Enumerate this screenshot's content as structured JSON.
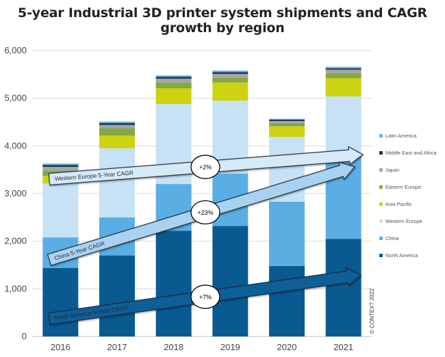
{
  "chart_data": {
    "type": "bar",
    "stacked": true,
    "title": "5-year Industrial 3D printer system shipments and CAGR growth by region",
    "categories": [
      "2016",
      "2017",
      "2018",
      "2019",
      "2020",
      "2021"
    ],
    "ylim": [
      0,
      6000
    ],
    "yticks": [
      "0",
      "1,000",
      "2,000",
      "3,000",
      "4,000",
      "5,000",
      "6,000"
    ],
    "ytick_values": [
      0,
      1000,
      2000,
      3000,
      4000,
      5000,
      6000
    ],
    "grid": true,
    "legend_position": "right",
    "series": [
      {
        "name": "North America",
        "color": "#0a5a92",
        "values": [
          1440,
          1700,
          2220,
          2320,
          1480,
          2050
        ]
      },
      {
        "name": "China",
        "color": "#5aaee3",
        "values": [
          640,
          800,
          980,
          1100,
          1350,
          1730
        ]
      },
      {
        "name": "Western Europe",
        "color": "#c7e1f5",
        "values": [
          1130,
          1450,
          1680,
          1530,
          1360,
          1260
        ]
      },
      {
        "name": "Asia Pacific",
        "color": "#cdd312",
        "values": [
          160,
          270,
          330,
          380,
          220,
          380
        ]
      },
      {
        "name": "Eastern Europe",
        "color": "#87a840",
        "values": [
          110,
          150,
          120,
          100,
          70,
          110
        ]
      },
      {
        "name": "Japan",
        "color": "#a6a6a6",
        "values": [
          80,
          70,
          80,
          80,
          40,
          70
        ]
      },
      {
        "name": "Middle East and Africa",
        "color": "#173857",
        "values": [
          40,
          40,
          40,
          40,
          30,
          30
        ]
      },
      {
        "name": "Latin America",
        "color": "#6fb3df",
        "values": [
          30,
          30,
          30,
          30,
          20,
          30
        ]
      }
    ],
    "legend_order": [
      "Latin America",
      "Middle East and Africa",
      "Japan",
      "Eastern Europe",
      "Asia Pacific",
      "Western Europe",
      "China",
      "North America"
    ],
    "annotations": [
      {
        "label": "Western Europe 5-Year CAGR",
        "cagr": "+2%",
        "fill": "#d6e9f7"
      },
      {
        "label": "China 5-Year CAGR",
        "cagr": "+23%",
        "fill": "#a9d2f0"
      },
      {
        "label": "North America 5-Year CAGR",
        "cagr": "+7%",
        "fill": "#0f5f98"
      }
    ],
    "copyright": "© CONTEXT 2022"
  }
}
